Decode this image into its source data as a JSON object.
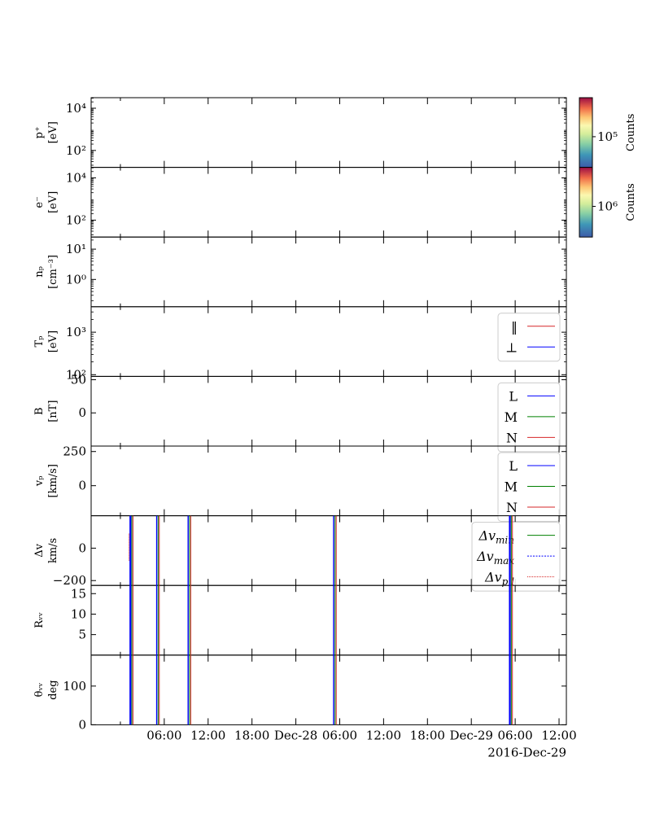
{
  "chart_data": {
    "type": "line",
    "x_tick_labels": [
      "06:00",
      "12:00",
      "18:00",
      "Dec-28",
      "06:00",
      "12:00",
      "18:00",
      "Dec-29",
      "06:00",
      "12:00"
    ],
    "x_range_hours": [
      -4,
      61
    ],
    "date_label": "2016-Dec-29",
    "panels": [
      {
        "id": "p",
        "ylabel": [
          "p⁺",
          "[eV]"
        ],
        "scale": "log",
        "ylim_log": [
          1.2,
          4.5
        ],
        "ticks": [
          {
            "v": 2,
            "label": "10²"
          },
          {
            "v": 4,
            "label": "10⁴"
          }
        ]
      },
      {
        "id": "e",
        "ylabel": [
          "e⁻",
          "[eV]"
        ],
        "scale": "log",
        "ylim_log": [
          1.2,
          4.5
        ],
        "ticks": [
          {
            "v": 2,
            "label": "10²"
          },
          {
            "v": 4,
            "label": "10⁴"
          }
        ]
      },
      {
        "id": "np",
        "ylabel": [
          "nₚ",
          "[cm⁻³]"
        ],
        "scale": "log",
        "ylim_log": [
          -0.9,
          1.4
        ],
        "ticks": [
          {
            "v": 0,
            "label": "10⁰"
          },
          {
            "v": 1,
            "label": "10¹"
          }
        ]
      },
      {
        "id": "Tp",
        "ylabel": [
          "Tₚ",
          "[eV]"
        ],
        "scale": "log",
        "ylim_log": [
          1.96,
          3.6
        ],
        "ticks": [
          {
            "v": 2,
            "label": "10²"
          },
          {
            "v": 3,
            "label": "10³"
          }
        ],
        "legend": [
          {
            "label": "‖",
            "color": "#d62728",
            "dash": ""
          },
          {
            "label": "⊥",
            "color": "#0000ff",
            "dash": ""
          }
        ]
      },
      {
        "id": "B",
        "ylabel": [
          "B",
          "[nT]"
        ],
        "ylim": [
          -50,
          55
        ],
        "ticks": [
          {
            "v": 0,
            "label": "0"
          },
          {
            "v": 50,
            "label": "50"
          }
        ],
        "legend": [
          {
            "label": "L",
            "color": "#0000ff",
            "dash": ""
          },
          {
            "label": "M",
            "color": "#008000",
            "dash": ""
          },
          {
            "label": "N",
            "color": "#d62728",
            "dash": ""
          }
        ]
      },
      {
        "id": "vp",
        "ylabel": [
          "vₚ",
          "[km/s]"
        ],
        "ylim": [
          -220,
          290
        ],
        "ticks": [
          {
            "v": 0,
            "label": "0"
          },
          {
            "v": 250,
            "label": "250"
          }
        ],
        "legend": [
          {
            "label": "L",
            "color": "#0000ff",
            "dash": ""
          },
          {
            "label": "M",
            "color": "#008000",
            "dash": ""
          },
          {
            "label": "N",
            "color": "#d62728",
            "dash": ""
          }
        ]
      },
      {
        "id": "dv",
        "ylabel": [
          "Δv",
          "km/s"
        ],
        "ylim": [
          -230,
          200
        ],
        "ticks": [
          {
            "v": -200,
            "label": "−200"
          },
          {
            "v": 0,
            "label": "0"
          }
        ],
        "legend": [
          {
            "label": "Δv",
            "sub": "min",
            "color": "#008000",
            "dash": ""
          },
          {
            "label": "Δv",
            "sub": "max",
            "color": "#0000ff",
            "dash": "2,1.5"
          },
          {
            "label": "Δv",
            "sub": "p,l",
            "color": "#d62728",
            "dash": "1,1"
          }
        ]
      },
      {
        "id": "Rw",
        "ylabel": [
          "Rᵥᵥ",
          ""
        ],
        "ylim": [
          0,
          17
        ],
        "ticks": [
          {
            "v": 5,
            "label": "5"
          },
          {
            "v": 10,
            "label": "10"
          },
          {
            "v": 15,
            "label": "15"
          }
        ]
      },
      {
        "id": "theta",
        "ylabel": [
          "θᵥᵥ",
          "deg"
        ],
        "ylim": [
          0,
          180
        ],
        "ticks": [
          {
            "v": 0,
            "label": "0"
          },
          {
            "v": 100,
            "label": "100"
          }
        ]
      }
    ],
    "event_lines_hours": [
      1.5,
      5.1,
      9.4,
      29.3,
      53.4
    ],
    "colorbars": [
      {
        "label": "Counts",
        "tick_label": "10⁵"
      },
      {
        "label": "Counts",
        "tick_label": "10⁶"
      }
    ],
    "colors": {
      "blue": "#0000ff",
      "green": "#008000",
      "red": "#d62728"
    }
  }
}
